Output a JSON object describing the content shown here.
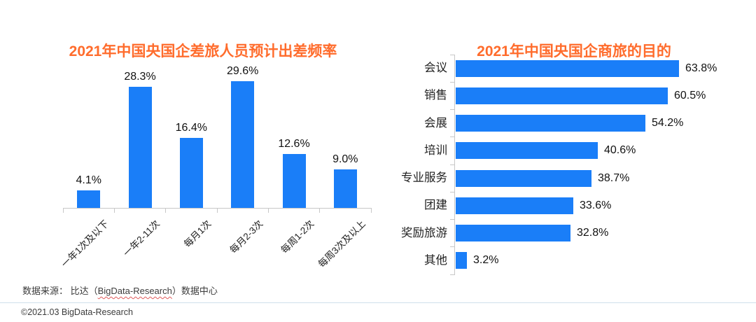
{
  "chart_data": [
    {
      "type": "bar",
      "title": "2021年中国央国企差旅人员预计出差频率",
      "categories": [
        "一年1次及以下",
        "一年2-11次",
        "每月1次",
        "每月2-3次",
        "每周1-2次",
        "每周3次及以上"
      ],
      "values": [
        4.1,
        28.3,
        16.4,
        29.6,
        12.6,
        9.0
      ],
      "value_labels": [
        "4.1%",
        "28.3%",
        "16.4%",
        "29.6%",
        "12.6%",
        "9.0%"
      ],
      "unit": "%",
      "ylim": [
        0,
        36
      ],
      "grid": false,
      "legend": false,
      "data_labels": "above-bars",
      "category_label_rotation_deg": -45,
      "bar_color": "#1a7ef8"
    },
    {
      "type": "bar-horizontal",
      "title": "2021年中国央国企商旅的目的",
      "categories": [
        "会议",
        "销售",
        "会展",
        "培训",
        "专业服务",
        "团建",
        "奖励旅游",
        "其他"
      ],
      "values": [
        63.8,
        60.5,
        54.2,
        40.6,
        38.7,
        33.6,
        32.8,
        3.2
      ],
      "value_labels": [
        "63.8%",
        "60.5%",
        "54.2%",
        "40.6%",
        "38.7%",
        "33.6%",
        "32.8%",
        "3.2%"
      ],
      "unit": "%",
      "xlim": [
        0,
        86
      ],
      "grid": false,
      "legend": false,
      "data_labels": "right-of-bars",
      "bar_color": "#1a7ef8"
    }
  ],
  "footer": {
    "source_prefix": "数据来源： 比达（",
    "source_brand": "BigData-Research",
    "source_suffix": "）数据中心",
    "copyright": "©2021.03 BigData-Research"
  },
  "colors": {
    "title_orange": "#ff6c2c",
    "bar_blue": "#1a7ef8",
    "axis_gray": "#c7c7c7",
    "divider_blue_gray": "#cfe0ec",
    "spellcheck_red": "#e05a5a"
  }
}
